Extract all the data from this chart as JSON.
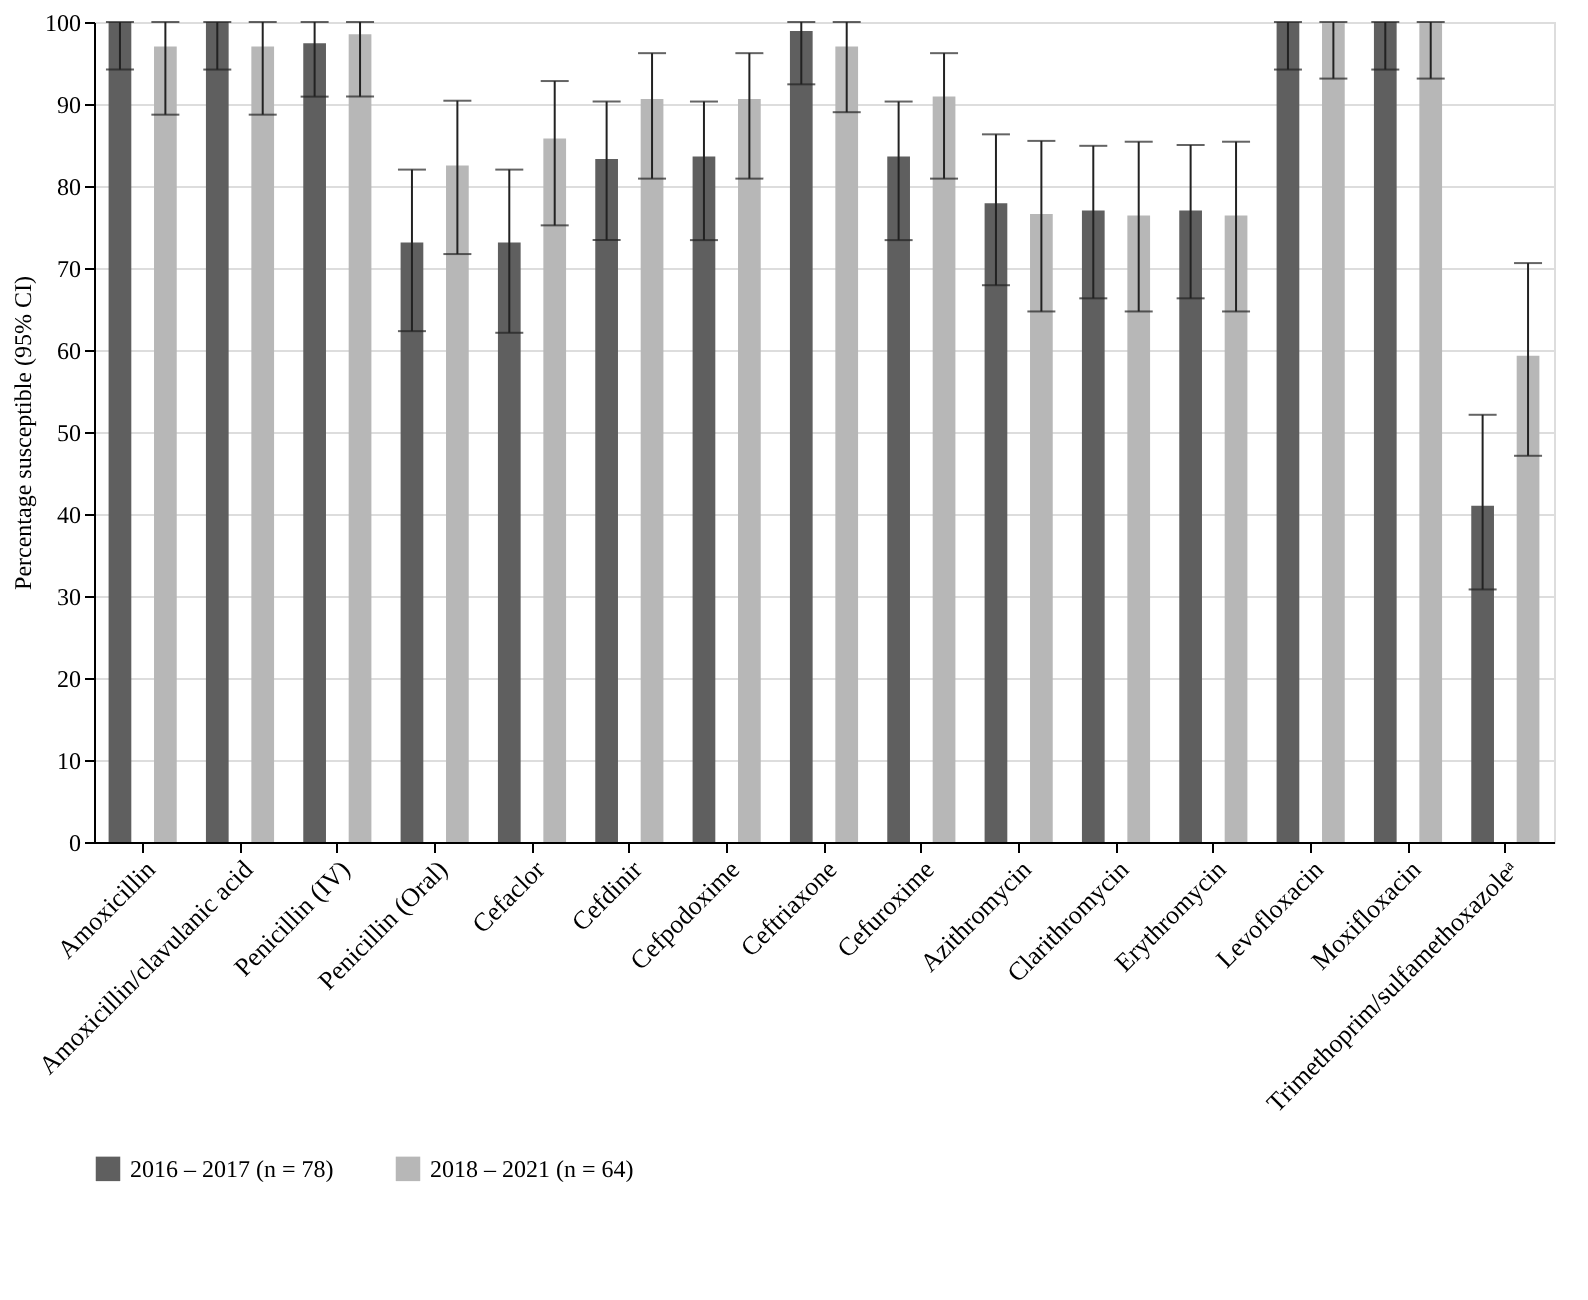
{
  "chart_data": {
    "type": "bar",
    "ylabel": "Percentage susceptible (95% CI)",
    "categories": [
      "Amoxicillin",
      "Amoxicillin/clavulanic acid",
      "Penicillin (IV)",
      "Penicillin (Oral)",
      "Cefaclor",
      "Cefdinir",
      "Cefpodoxime",
      "Ceftriaxone",
      "Cefuroxime",
      "Azithromycin",
      "Clarithromycin",
      "Erythromycin",
      "Levofloxacin",
      "Moxifloxacin",
      "Trimethoprim/sulfamethoxazoleᵃ"
    ],
    "series": [
      {
        "name": "2016 – 2017 (n = 78)",
        "color": "#5f5f5f",
        "values": [
          100,
          100,
          97.4,
          73.1,
          73.1,
          83.3,
          83.6,
          98.9,
          83.6,
          77.9,
          77,
          77,
          100,
          100,
          41
        ],
        "errors": [
          [
            94.2,
            100
          ],
          [
            94.2,
            100
          ],
          [
            90.9,
            100
          ],
          [
            62.3,
            82
          ],
          [
            62.1,
            82
          ],
          [
            73.4,
            90.3
          ],
          [
            73.4,
            90.3
          ],
          [
            92.4,
            100
          ],
          [
            73.4,
            90.3
          ],
          [
            67.9,
            86.3
          ],
          [
            66.3,
            84.9
          ],
          [
            66.3,
            85
          ],
          [
            94.2,
            100
          ],
          [
            94.2,
            100
          ],
          [
            30.8,
            52.1
          ]
        ]
      },
      {
        "name": "2018 – 2021 (n = 64)",
        "color": "#b7b7b7",
        "values": [
          97,
          97,
          98.5,
          82.5,
          85.8,
          90.6,
          90.6,
          97,
          90.9,
          76.6,
          76.4,
          76.4,
          100,
          100,
          59.3
        ],
        "errors": [
          [
            88.7,
            100
          ],
          [
            88.7,
            100
          ],
          [
            90.9,
            100
          ],
          [
            71.7,
            90.4
          ],
          [
            75.2,
            92.8
          ],
          [
            80.9,
            96.2
          ],
          [
            80.9,
            96.2
          ],
          [
            89,
            100
          ],
          [
            80.9,
            96.2
          ],
          [
            64.7,
            85.5
          ],
          [
            64.7,
            85.4
          ],
          [
            64.7,
            85.4
          ],
          [
            93.1,
            100
          ],
          [
            93.1,
            100
          ],
          [
            47.1,
            70.6
          ]
        ]
      }
    ],
    "ylim": [
      0,
      100
    ],
    "yticks": [
      0,
      10,
      20,
      30,
      40,
      50,
      60,
      70,
      80,
      90,
      100
    ],
    "grid": "y",
    "legend": "bottom"
  }
}
